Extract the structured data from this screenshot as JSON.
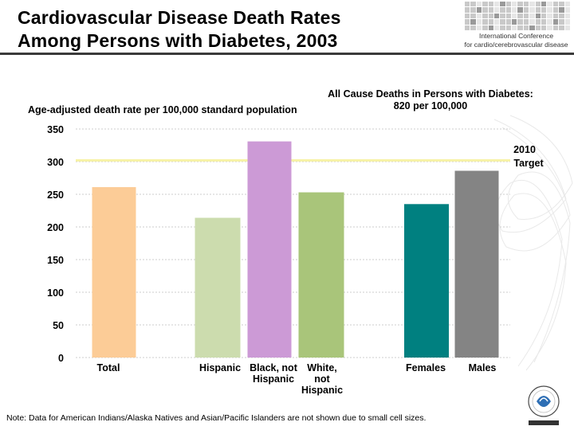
{
  "title_line1": "Cardiovascular Disease Death Rates",
  "title_line2": "Among Persons with Diabetes, 2003",
  "logo": {
    "line1": "International Conference",
    "line2": "for cardio/cerebrovascular disease"
  },
  "note": "Note: Data for American Indians/Alaska Natives and Asian/Pacific Islanders are not shown due to small cell sizes.",
  "colors": {
    "target_line": "#f7f2a6",
    "grid": "#cccccc"
  },
  "chart_data": {
    "type": "bar",
    "ylabel": "Age-adjusted death rate per 100,000 standard population",
    "annotation_line1": "All Cause Deaths in  Persons  with Diabetes:",
    "annotation_line2": "820  per 100,000",
    "target_label_line1": "2010",
    "target_label_line2": "Target",
    "target_value": 302,
    "ylim": [
      0,
      350
    ],
    "yticks": [
      "0",
      "50",
      "100",
      "150",
      "200",
      "250",
      "300",
      "350"
    ],
    "grid": true,
    "categories": [
      {
        "label": [
          "Total"
        ],
        "value": 261,
        "color": "#fccc97"
      },
      {
        "label": [
          "Hispanic"
        ],
        "value": 214,
        "color": "#ccdcae"
      },
      {
        "label": [
          "Black, not",
          "Hispanic"
        ],
        "value": 331,
        "color": "#cc9ad6"
      },
      {
        "label": [
          "White,",
          "not",
          "Hispanic"
        ],
        "value": 253,
        "color": "#a9c57a"
      },
      {
        "label": [
          "Females"
        ],
        "value": 235,
        "color": "#008080"
      },
      {
        "label": [
          "Males"
        ],
        "value": 286,
        "color": "#848484"
      }
    ]
  }
}
